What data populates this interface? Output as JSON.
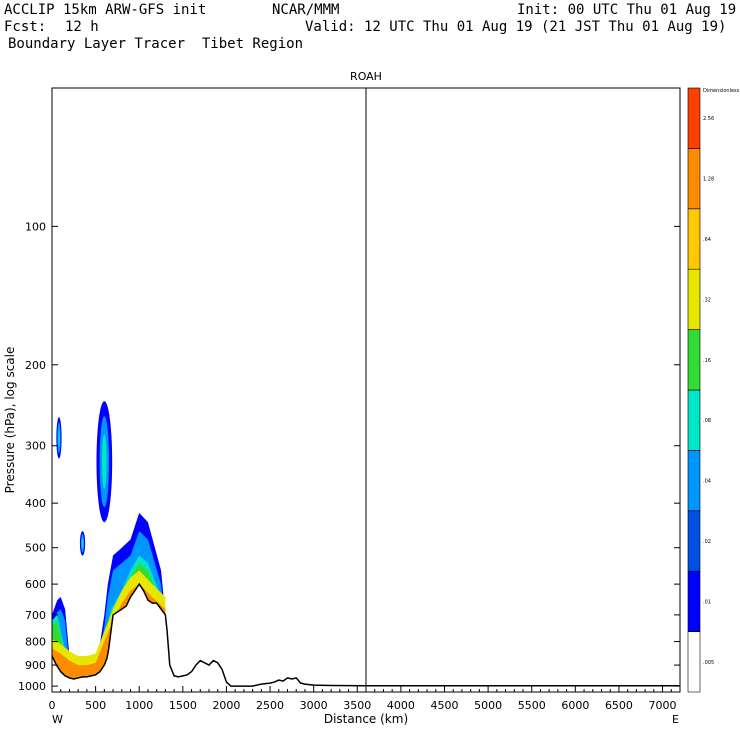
{
  "header": {
    "model": "ACCLIP 15km ARW-GFS init",
    "org": "NCAR/MMM",
    "init": "Init: 00 UTC Thu 01 Aug 19",
    "fcst_label": "Fcst:",
    "fcst_value": "12 h",
    "valid": "Valid: 12 UTC Thu 01 Aug 19 (21 JST Thu 01 Aug 19)",
    "field": "Boundary Layer Tracer  Tibet Region"
  },
  "chart_data": {
    "type": "cross-section",
    "title": "ROAH",
    "xlabel": "Distance (km)",
    "ylabel": "Pressure (hPa), log scale",
    "xlim": [
      0,
      7200
    ],
    "ylim": [
      1030,
      50
    ],
    "x_ticks": [
      "0",
      "500",
      "1000",
      "1500",
      "2000",
      "2500",
      "3000",
      "3500",
      "4000",
      "4500",
      "5000",
      "5500",
      "6000",
      "6500",
      "7000"
    ],
    "y_ticks": [
      "100",
      "200",
      "300",
      "400",
      "500",
      "600",
      "700",
      "800",
      "900",
      "1000"
    ],
    "y_tick_values": [
      100,
      200,
      300,
      400,
      500,
      600,
      700,
      800,
      900,
      1000
    ],
    "x_end_labels": {
      "left": "W",
      "right": "E"
    },
    "marker_line_km": 3600,
    "colorbar": {
      "units": "Dimensionless",
      "levels": [
        ".005",
        ".01",
        ".02",
        ".04",
        ".08",
        ".16",
        ".32",
        ".64",
        "1.28",
        "2.56"
      ],
      "colors": [
        "#ffffff",
        "#0000ff",
        "#0050e6",
        "#0096ff",
        "#00e6c8",
        "#32dc32",
        "#e6e600",
        "#ffc800",
        "#ff8c00",
        "#ff4000"
      ]
    },
    "terrain": {
      "km": [
        0,
        50,
        100,
        150,
        200,
        250,
        300,
        350,
        400,
        450,
        500,
        550,
        600,
        630,
        650,
        700,
        750,
        800,
        850,
        900,
        950,
        1000,
        1050,
        1100,
        1150,
        1200,
        1250,
        1300,
        1320,
        1350,
        1400,
        1450,
        1500,
        1550,
        1600,
        1650,
        1700,
        1750,
        1800,
        1850,
        1900,
        1950,
        2000,
        2050,
        2100,
        2200,
        2300,
        2400,
        2500,
        2550,
        2600,
        2650,
        2700,
        2750,
        2800,
        2850,
        2900,
        3000,
        3200,
        3600,
        4000,
        5000,
        6000,
        7200
      ],
      "hPa": [
        860,
        900,
        930,
        950,
        960,
        965,
        960,
        955,
        955,
        950,
        945,
        930,
        900,
        870,
        830,
        700,
        690,
        680,
        670,
        640,
        620,
        600,
        620,
        650,
        660,
        660,
        680,
        700,
        760,
        900,
        950,
        955,
        950,
        945,
        930,
        900,
        880,
        890,
        900,
        880,
        890,
        920,
        980,
        1000,
        1000,
        1000,
        1000,
        990,
        985,
        980,
        970,
        975,
        960,
        965,
        960,
        985,
        990,
        995,
        997,
        998,
        998,
        998,
        998,
        998
      ]
    },
    "plume": [
      {
        "level": ".005",
        "hPa_top": [
          700,
          650,
          640,
          680,
          860,
          880,
          900,
          880,
          700,
          600,
          520,
          500,
          480,
          420,
          440,
          560,
          700
        ],
        "km": [
          0,
          60,
          100,
          150,
          200,
          300,
          400,
          520,
          600,
          640,
          700,
          800,
          900,
          1000,
          1100,
          1250,
          1300
        ]
      },
      {
        "level": ".16",
        "hPa_top": [
          720,
          700,
          760,
          830,
          870,
          880,
          870,
          760,
          680,
          620,
          560,
          520,
          540,
          640,
          700
        ],
        "km": [
          0,
          60,
          100,
          150,
          250,
          400,
          550,
          620,
          680,
          800,
          900,
          1000,
          1100,
          1250,
          1300
        ]
      },
      {
        "level": ".64",
        "hPa_top": [
          830,
          850,
          880,
          900,
          900,
          890,
          800,
          720,
          660,
          620,
          600,
          640,
          680
        ],
        "km": [
          0,
          100,
          200,
          300,
          400,
          500,
          600,
          700,
          800,
          900,
          1000,
          1150,
          1300
        ]
      }
    ],
    "upper_blobs": [
      {
        "level": ".02",
        "km_center": 600,
        "hPa_center": 320,
        "km_halfwidth": 90,
        "hPa_top": 240,
        "hPa_bottom": 440
      },
      {
        "level": ".02",
        "km_center": 80,
        "hPa_center": 290,
        "km_halfwidth": 30,
        "hPa_top": 260,
        "hPa_bottom": 320
      },
      {
        "level": ".02",
        "km_center": 350,
        "hPa_center": 490,
        "km_halfwidth": 30,
        "hPa_top": 460,
        "hPa_bottom": 520
      }
    ]
  }
}
